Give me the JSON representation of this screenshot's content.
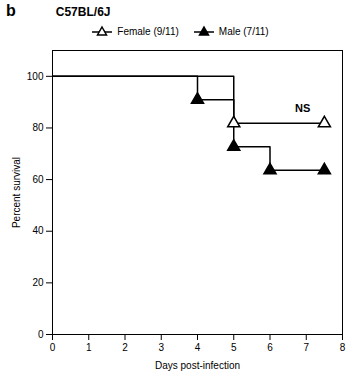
{
  "chart_data": {
    "type": "line",
    "title": "C57BL/6J",
    "xlabel": "Days post-infection",
    "ylabel": "Percent survival",
    "xlim": [
      0,
      8
    ],
    "ylim": [
      0,
      110
    ],
    "xticks": [
      0,
      1,
      2,
      3,
      4,
      5,
      6,
      7,
      8
    ],
    "yticks": [
      0,
      20,
      40,
      60,
      80,
      100
    ],
    "color": "#000000",
    "legend": "top",
    "series": [
      {
        "name": "Female (9/11)",
        "marker": "triangle-open",
        "x": [
          0,
          5,
          5,
          7.5
        ],
        "values": [
          100,
          100,
          81.8,
          81.8
        ],
        "marker_x": [
          5,
          7.5
        ],
        "marker_values": [
          81.8,
          81.8
        ]
      },
      {
        "name": "Male (7/11)",
        "marker": "triangle",
        "x": [
          0,
          4,
          4,
          5,
          5,
          6,
          6,
          7.5
        ],
        "values": [
          100,
          100,
          90.9,
          90.9,
          72.7,
          72.7,
          63.6,
          63.6
        ],
        "marker_x": [
          4,
          5,
          6,
          7.5
        ],
        "marker_values": [
          90.9,
          72.7,
          63.6,
          63.6
        ]
      }
    ],
    "annotations": [
      {
        "text": "NS",
        "x": 6.9,
        "y": 86
      },
      {
        "text": "b"
      }
    ]
  }
}
